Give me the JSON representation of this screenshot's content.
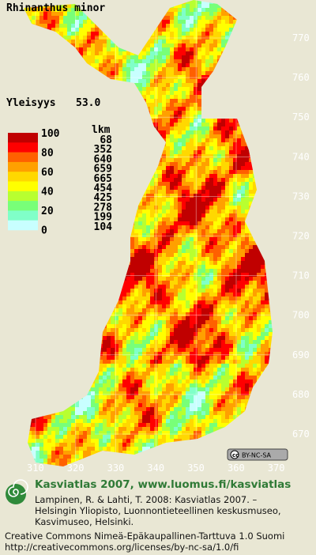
{
  "title": "Rhinanthus minor",
  "frequency": {
    "label": "Yleisyys",
    "value": "53.0"
  },
  "legend": {
    "scale_labels": [
      "100",
      "80",
      "60",
      "40",
      "20",
      "0"
    ],
    "count_header": "lkm",
    "counts": [
      "68",
      "352",
      "640",
      "659",
      "665",
      "454",
      "425",
      "278",
      "199",
      "104"
    ],
    "colors": [
      "#c00000",
      "#ff0000",
      "#ff6000",
      "#ffa000",
      "#ffd800",
      "#ffff00",
      "#b8ff30",
      "#78ff78",
      "#80ffc8",
      "#c8ffff"
    ]
  },
  "grid": {
    "y_labels": [
      "770",
      "760",
      "750",
      "740",
      "730",
      "720",
      "710",
      "700",
      "690",
      "680",
      "670"
    ],
    "x_labels": [
      "310",
      "320",
      "330",
      "340",
      "350",
      "360",
      "370"
    ]
  },
  "badge": "BY-NC-SA",
  "footer": {
    "heading": "Kasviatlas 2007, www.luomus.fi/kasviatlas",
    "citation": [
      "Lampinen, R. & Lahti, T. 2008: Kasviatlas 2007. –",
      "Helsingin Yliopisto, Luonnontieteellinen keskusmuseo,",
      "Kasvimuseo, Helsinki."
    ],
    "license": [
      "Creative Commons Nimeä-Epäkaupallinen-Tarttuva 1.0 Suomi",
      "http://creativecommons.org/licenses/by-nc-sa/1.0/fi"
    ]
  }
}
